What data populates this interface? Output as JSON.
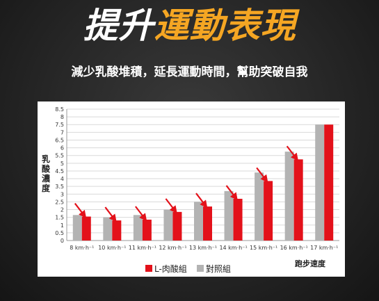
{
  "headline": {
    "part1": "提升",
    "part2": "運動表現"
  },
  "subtitle": "減少乳酸堆積，延長運動時間，幫助突破自我",
  "colors": {
    "accent": "#f5a623",
    "series_red": "#e3111a",
    "series_gray": "#b3b3b3",
    "arrow": "#e3111a"
  },
  "chart_data": {
    "type": "bar",
    "ylabel": "乳酸濃度",
    "xlabel": "跑步速度",
    "ylim": [
      0,
      8.5
    ],
    "yticks": [
      "0",
      "0.5",
      "1",
      "1.5",
      "2",
      "2.5",
      "3",
      "3.5",
      "4",
      "4.5",
      "5",
      "5.5",
      "6",
      "6.5",
      "7",
      "7.5",
      "8",
      "8.5"
    ],
    "categories": [
      "8 km·h⁻¹",
      "10 km·h⁻¹",
      "11 km·h⁻¹",
      "12 km·h⁻¹",
      "13 km·h⁻¹",
      "14 km·h⁻¹",
      "15 km·h⁻¹",
      "16 km·h⁻¹",
      "17 km·h⁻¹"
    ],
    "series": [
      {
        "name": "對照組",
        "color": "#b3b3b3",
        "values": [
          1.65,
          1.5,
          1.65,
          2.0,
          2.5,
          3.2,
          4.4,
          5.75,
          7.5
        ]
      },
      {
        "name": "L-肉酸組",
        "color": "#e3111a",
        "values": [
          1.55,
          1.3,
          1.35,
          1.85,
          2.2,
          2.7,
          3.85,
          5.25,
          7.5
        ]
      }
    ],
    "arrows_on_categories": [
      0,
      1,
      2,
      3,
      4,
      5,
      6,
      7
    ],
    "grid": true,
    "legend": "bottom-center"
  }
}
